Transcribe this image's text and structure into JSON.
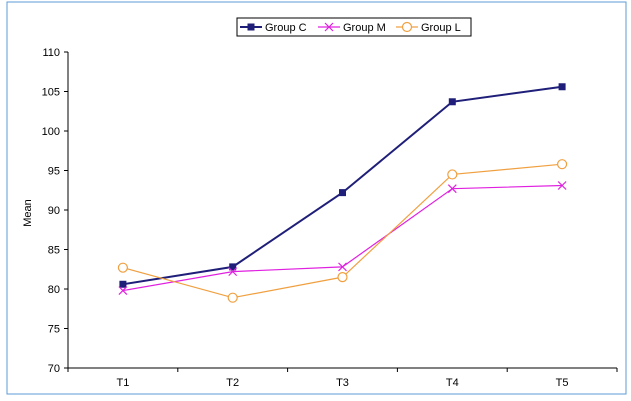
{
  "chart_data": {
    "type": "line",
    "title": "",
    "xlabel": "",
    "ylabel": "Mean",
    "categories": [
      "T1",
      "T2",
      "T3",
      "T4",
      "T5"
    ],
    "ylim": [
      70,
      110
    ],
    "yticks": [
      70,
      75,
      80,
      85,
      90,
      95,
      100,
      105,
      110
    ],
    "grid": false,
    "legend": "top-center",
    "series": [
      {
        "name": "Group C",
        "values": [
          80.6,
          82.8,
          92.2,
          103.7,
          105.6
        ],
        "color": "#1f1f7a",
        "marker": "square"
      },
      {
        "name": "Group M",
        "values": [
          79.8,
          82.2,
          82.8,
          92.7,
          93.1
        ],
        "color": "#e020e0",
        "marker": "x"
      },
      {
        "name": "Group L",
        "values": [
          82.7,
          78.9,
          81.5,
          94.5,
          95.8
        ],
        "color": "#f0a040",
        "marker": "circle"
      }
    ]
  },
  "colors": {
    "frame_border": "#5b9bd5",
    "axis": "#000000"
  }
}
